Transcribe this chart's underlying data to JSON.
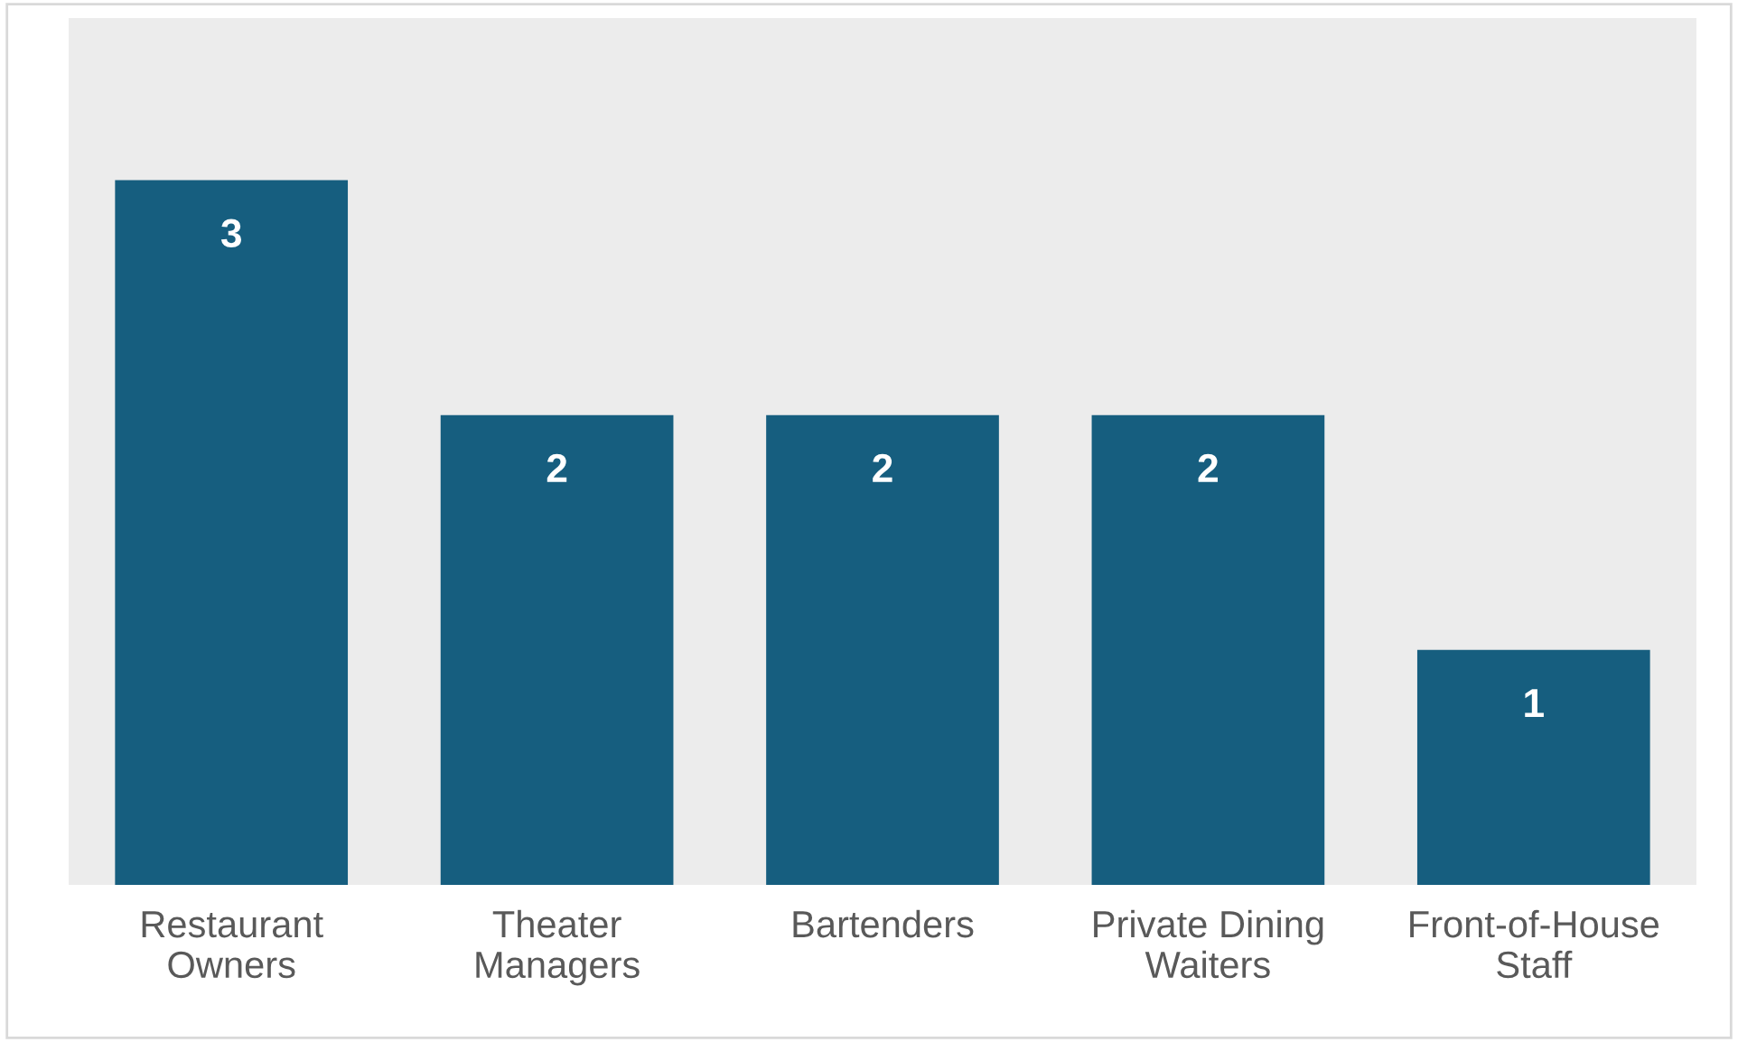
{
  "chart_data": {
    "type": "bar",
    "categories": [
      "Restaurant Owners",
      "Theater Managers",
      "Bartenders",
      "Private Dining Waiters",
      "Front-of-House Staff"
    ],
    "values": [
      3,
      2,
      2,
      2,
      1
    ],
    "color": "#165e7f",
    "data_labels": true,
    "grid": false,
    "legend": false,
    "tick_labels": "x"
  }
}
